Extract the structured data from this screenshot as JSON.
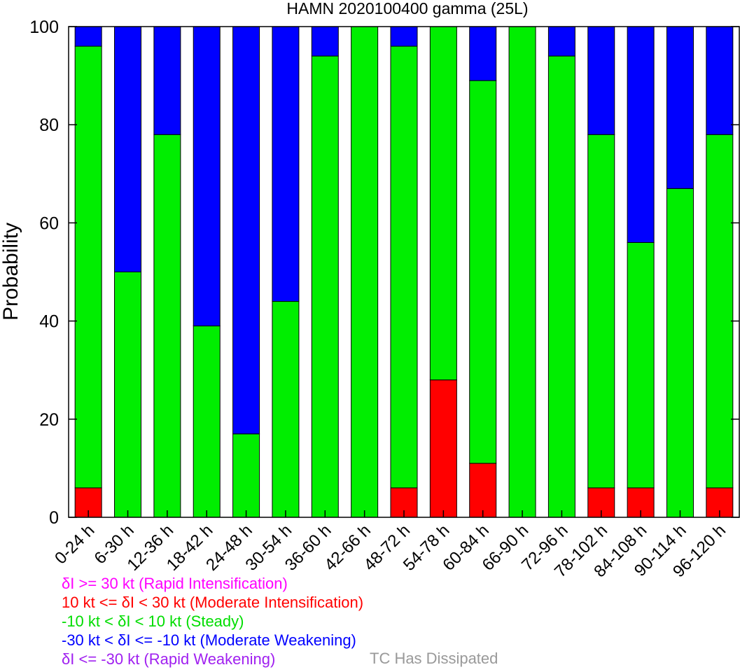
{
  "chart_data": {
    "type": "bar",
    "stacked": true,
    "title": "HAMN 2020100400 gamma (25L)",
    "xlabel": "",
    "ylabel": "Probability",
    "ylim": [
      0,
      100
    ],
    "yticks": [
      0,
      20,
      40,
      60,
      80,
      100
    ],
    "grid": false,
    "categories": [
      "0-24 h",
      "6-30 h",
      "12-36 h",
      "18-42 h",
      "24-48 h",
      "30-54 h",
      "36-60 h",
      "42-66 h",
      "48-72 h",
      "54-78 h",
      "60-84 h",
      "66-90 h",
      "72-96 h",
      "78-102 h",
      "84-108 h",
      "90-114 h",
      "96-120 h"
    ],
    "series": [
      {
        "name": "Moderate Intensification",
        "color": "#ff0000",
        "values": [
          6,
          0,
          0,
          0,
          0,
          0,
          0,
          0,
          6,
          28,
          11,
          0,
          0,
          6,
          6,
          0,
          6
        ]
      },
      {
        "name": "Steady",
        "color": "#00ee00",
        "values": [
          90,
          50,
          78,
          39,
          17,
          44,
          94,
          100,
          90,
          72,
          78,
          100,
          94,
          72,
          50,
          67,
          72
        ]
      },
      {
        "name": "Moderate Weakening",
        "color": "#0000ff",
        "values": [
          4,
          50,
          22,
          61,
          83,
          56,
          6,
          0,
          4,
          0,
          11,
          0,
          6,
          22,
          44,
          33,
          22
        ]
      }
    ],
    "legend": {
      "placement": "bottom-left",
      "entries": [
        {
          "text": "δI >= 30 kt (Rapid Intensification)",
          "color": "#ff00ff"
        },
        {
          "text": "10 kt <= δI < 30 kt (Moderate Intensification)",
          "color": "#ff0000"
        },
        {
          "text": "-10 kt < δI < 10 kt (Steady)",
          "color": "#00dd00"
        },
        {
          "text": "-30 kt < δI <= -10 kt (Moderate Weakening)",
          "color": "#0000ff"
        },
        {
          "text": "δI <= -30 kt (Rapid Weakening)",
          "color": "#a020f0"
        }
      ],
      "dissipated": {
        "text": "TC Has Dissipated",
        "color": "#999999"
      }
    }
  }
}
